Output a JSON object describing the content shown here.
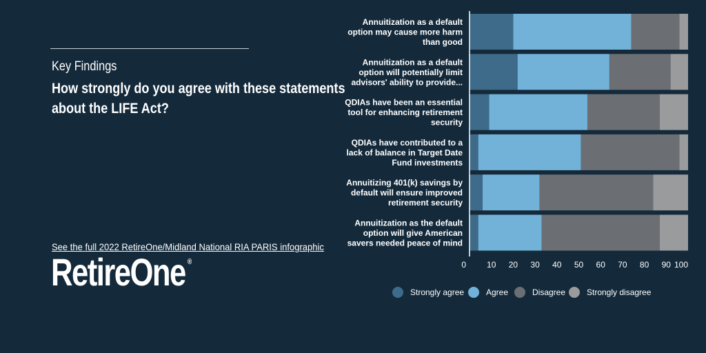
{
  "intro": {
    "kicker": "Key Findings",
    "headline": "How strongly do you agree with these statements about the LIFE Act?",
    "link": "See the full 2022 RetireOne/Midland National RIA PARIS infographic"
  },
  "logo": {
    "text": "RetireOne",
    "reg": "®"
  },
  "colors": {
    "background": "#142a3b",
    "strongly_agree": "#3e6b8a",
    "agree": "#72b2d8",
    "disagree": "#6b6f73",
    "strongly_disagree": "#9a9b9c"
  },
  "chart_data": {
    "type": "bar",
    "orientation": "horizontal",
    "stacked": true,
    "categories": [
      [
        "Annuitization as a default",
        "option may cause more harm",
        "than good"
      ],
      [
        "Annuitization as a default",
        "option will potentially limit",
        "advisors' ability to provide..."
      ],
      [
        "QDIAs have been an essential",
        "tool for enhancing retirement",
        "security"
      ],
      [
        "QDIAs have contributed to a",
        "lack of balance in Target Date",
        "Fund investments"
      ],
      [
        "Annuitizing 401(k) savings by",
        "default will ensure improved",
        "retirement security"
      ],
      [
        "Annuitization as the default",
        "option will give American",
        "savers needed peace of mind"
      ]
    ],
    "series": [
      {
        "name": "Strongly agree",
        "color": "#3e6b8a",
        "values": [
          20,
          22,
          9,
          4,
          6,
          4
        ]
      },
      {
        "name": "Agree",
        "color": "#72b2d8",
        "values": [
          54,
          42,
          45,
          47,
          26,
          29
        ]
      },
      {
        "name": "Disagree",
        "color": "#6b6f73",
        "values": [
          22,
          28,
          33,
          45,
          52,
          54
        ]
      },
      {
        "name": "Strongly disagree",
        "color": "#9a9b9c",
        "values": [
          4,
          8,
          13,
          4,
          16,
          13
        ]
      }
    ],
    "xlim": [
      0,
      100
    ],
    "xticks": [
      "0",
      "10",
      "20",
      "30",
      "40",
      "50",
      "60",
      "70",
      "80",
      "90",
      "100"
    ],
    "legend_position": "bottom",
    "grid": false
  }
}
